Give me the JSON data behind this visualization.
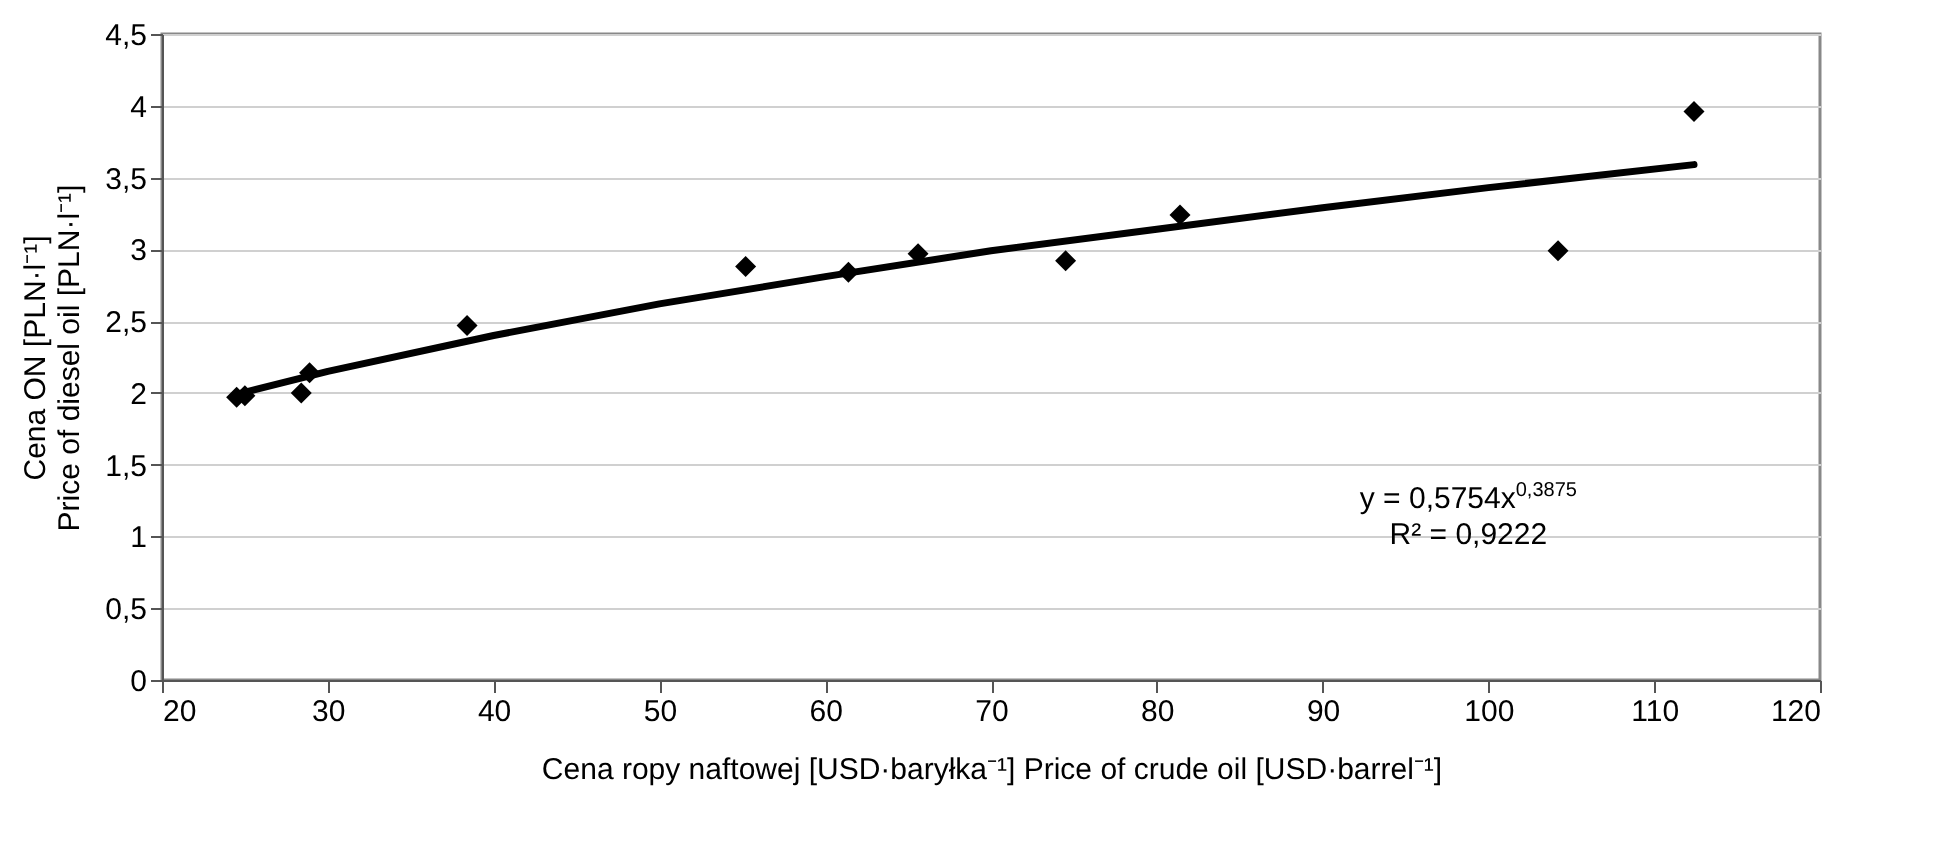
{
  "chart_data": {
    "type": "scatter",
    "xlabel": "Cena ropy naftowej [USD·baryłka⁻¹]  Price of crude oil [USD·barrel⁻¹]",
    "ylabel": "Cena ON [PLN·l⁻¹]\nPrice of diesel oil [PLN·l⁻¹]",
    "annotations": [
      "y = 0,5754x$^{0,3875}$",
      "R² = 0,9222"
    ],
    "series": [
      {
        "color": "#000000",
        "marker": "diamond",
        "x": [
          24.5,
          25.0,
          28.4,
          28.9,
          38.4,
          55.2,
          61.4,
          65.6,
          74.5,
          81.4,
          104.2,
          112.4
        ],
        "values": [
          1.97,
          1.98,
          2.0,
          2.14,
          2.47,
          2.88,
          2.84,
          2.97,
          2.92,
          3.24,
          2.99,
          3.96
        ]
      },
      {
        "type": "line",
        "color": "#000000",
        "marker": "none",
        "line_style": "solid",
        "x": [
          24.5,
          30,
          40,
          50,
          60,
          70,
          80,
          90,
          100,
          112.4
        ],
        "values": [
          1.99,
          2.15,
          2.4,
          2.62,
          2.81,
          2.99,
          3.14,
          3.29,
          3.43,
          3.59
        ]
      }
    ],
    "xlim": [
      20,
      120
    ],
    "xticks": [
      20,
      30,
      40,
      50,
      60,
      70,
      80,
      90,
      100,
      110,
      120
    ],
    "ylim": [
      0,
      4.5
    ],
    "yticks": [
      0,
      {
        "value": 0.5,
        "label": "0,5"
      },
      1,
      {
        "value": 1.5,
        "label": "1,5"
      },
      2,
      {
        "value": 2.5,
        "label": "2,5"
      },
      3,
      {
        "value": 3.5,
        "label": "3,5"
      },
      4,
      {
        "value": 4.5,
        "label": "4,5"
      }
    ],
    "grid": "y"
  }
}
